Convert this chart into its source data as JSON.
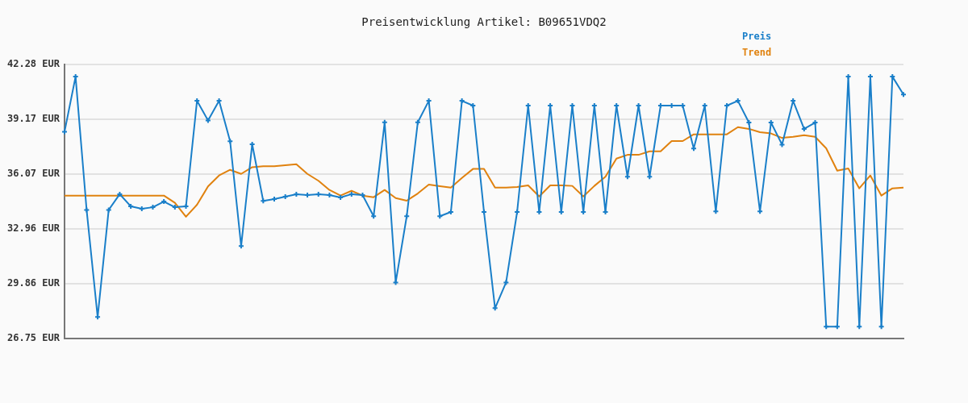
{
  "chart_data": {
    "type": "line",
    "title": "Preisentwicklung Artikel: B09651VDQ2",
    "categories": [
      null,
      null,
      null,
      null,
      null,
      null,
      null,
      null,
      null,
      null,
      null,
      null,
      null,
      null,
      null,
      null,
      null,
      null,
      null,
      null,
      null,
      null,
      null,
      null,
      null,
      null,
      null,
      null,
      null,
      null,
      null,
      null,
      null,
      null,
      null,
      null,
      null,
      null,
      null,
      null,
      null,
      null,
      null,
      null,
      null,
      null,
      null,
      null,
      null,
      null,
      null,
      null,
      null,
      null,
      null,
      null,
      null,
      null,
      null,
      null,
      null,
      null,
      null,
      null,
      null,
      null,
      null,
      null,
      null,
      null,
      null,
      null,
      null,
      null,
      null,
      null,
      null
    ],
    "series": [
      {
        "name": "Preis",
        "color": "#1a7fc9",
        "marker": "cross",
        "values": [
          38.47,
          41.59,
          34.04,
          27.97,
          34.04,
          34.93,
          34.24,
          34.1,
          34.19,
          34.51,
          34.19,
          34.24,
          40.22,
          39.11,
          40.22,
          37.93,
          31.99,
          37.76,
          34.55,
          34.65,
          34.79,
          34.93,
          34.88,
          34.93,
          34.88,
          34.74,
          34.93,
          34.88,
          33.68,
          39.0,
          29.93,
          33.68,
          39.0,
          40.22,
          33.68,
          33.92,
          40.22,
          39.95,
          33.92,
          28.47,
          29.93,
          33.92,
          39.95,
          33.92,
          39.95,
          33.92,
          39.95,
          33.92,
          39.95,
          33.92,
          39.95,
          35.92,
          39.95,
          35.92,
          39.95,
          39.95,
          39.95,
          37.52,
          39.95,
          33.95,
          39.95,
          40.22,
          38.99,
          33.95,
          38.99,
          37.74,
          40.22,
          38.63,
          38.99,
          27.42,
          27.42,
          41.59,
          27.42,
          41.59,
          27.42,
          41.59,
          40.58
        ]
      },
      {
        "name": "Trend",
        "color": "#e0820f",
        "marker": "none",
        "values": [
          34.85,
          34.85,
          34.85,
          34.85,
          34.85,
          34.85,
          34.85,
          34.85,
          34.85,
          34.85,
          34.44,
          33.65,
          34.33,
          35.37,
          35.99,
          36.31,
          36.08,
          36.46,
          36.51,
          36.51,
          36.57,
          36.63,
          36.08,
          35.69,
          35.17,
          34.85,
          35.12,
          34.85,
          34.76,
          35.17,
          34.71,
          34.56,
          34.97,
          35.47,
          35.38,
          35.3,
          35.85,
          36.36,
          36.36,
          35.3,
          35.3,
          35.34,
          35.43,
          34.8,
          35.43,
          35.43,
          35.4,
          34.8,
          35.4,
          35.92,
          36.95,
          37.16,
          37.16,
          37.36,
          37.36,
          37.94,
          37.94,
          38.32,
          38.32,
          38.32,
          38.32,
          38.73,
          38.63,
          38.44,
          38.37,
          38.12,
          38.18,
          38.27,
          38.18,
          37.53,
          36.26,
          36.39,
          35.26,
          35.99,
          34.85,
          35.26,
          35.3
        ]
      }
    ],
    "ylim": [
      26.75,
      42.28
    ],
    "yticks": [
      {
        "value": 26.75,
        "label": "26.75 EUR"
      },
      {
        "value": 29.86,
        "label": "29.86 EUR"
      },
      {
        "value": 32.96,
        "label": "32.96 EUR"
      },
      {
        "value": 36.07,
        "label": "36.07 EUR"
      },
      {
        "value": 39.17,
        "label": "39.17 EUR"
      },
      {
        "value": 42.28,
        "label": "42.28 EUR"
      }
    ],
    "grid": "y",
    "legend": "top right",
    "tick_labels": "y",
    "line_style": "solid"
  }
}
